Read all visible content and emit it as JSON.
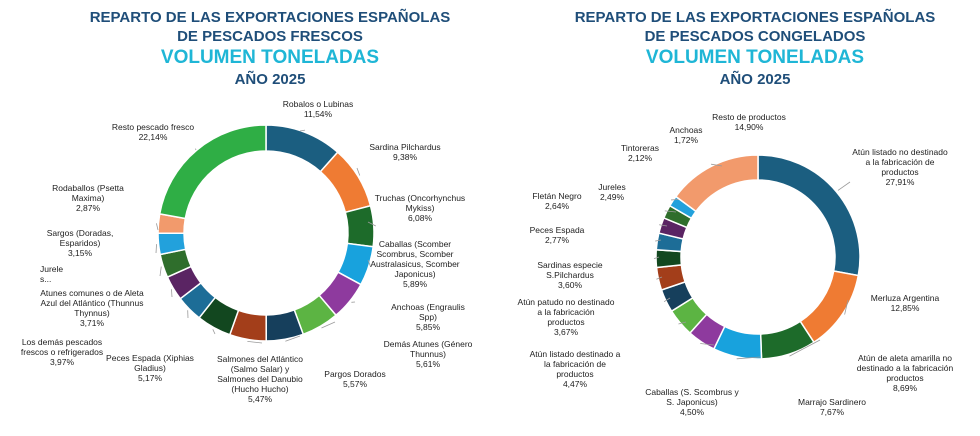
{
  "chart_data": [
    {
      "type": "pie",
      "title_lines": [
        "REPARTO DE LAS EXPORTACIONES ESPAÑOLAS",
        "DE PESCADOS FRESCOS"
      ],
      "subtitle": "VOLUMEN TONELADAS",
      "year": "AÑO 2025",
      "slices": [
        {
          "name": [
            "Robalos o Lubinas"
          ],
          "value": "11,54%",
          "pct": 11.54,
          "color": "#1b5e80"
        },
        {
          "name": [
            "Sardina Pilchardus"
          ],
          "value": "9,38%",
          "pct": 9.38,
          "color": "#ef7b33"
        },
        {
          "name": [
            "Truchas (Oncorhynchus",
            "Mykiss)"
          ],
          "value": "6,08%",
          "pct": 6.08,
          "color": "#1d6b2a"
        },
        {
          "name": [
            "Caballas (Scomber",
            "Scombrus, Scomber",
            "Australasicus, Scomber",
            "Japonicus)"
          ],
          "value": "5,89%",
          "pct": 5.89,
          "color": "#18a2dd"
        },
        {
          "name": [
            "Anchoas (Engraulis",
            "Spp)"
          ],
          "value": "5,85%",
          "pct": 5.85,
          "color": "#8e3a9e"
        },
        {
          "name": [
            "Demás Atunes (Género",
            "Thunnus)"
          ],
          "value": "5,61%",
          "pct": 5.61,
          "color": "#5cb443"
        },
        {
          "name": [
            "Pargos Dorados"
          ],
          "value": "5,57%",
          "pct": 5.57,
          "color": "#163f5c"
        },
        {
          "name": [
            "Salmones del Atlántico",
            "(Salmo Salar) y",
            "Salmones del Danubio",
            "(Hucho Hucho)"
          ],
          "value": "5,47%",
          "pct": 5.47,
          "color": "#a33e1a"
        },
        {
          "name": [
            "Peces Espada (Xiphias",
            "Gladius)"
          ],
          "value": "5,17%",
          "pct": 5.17,
          "color": "#12471f"
        },
        {
          "name": [
            "Los demás pescados",
            "frescos o refrigerados"
          ],
          "value": "3,97%",
          "pct": 3.97,
          "color": "#1d6d97"
        },
        {
          "name": [
            "Atunes comunes o de Aleta",
            "Azul del Atlántico (Thunnus",
            "Thynnus)"
          ],
          "value": "3,71%",
          "pct": 3.71,
          "color": "#5a2463"
        },
        {
          "name": [
            "Jurele",
            "s..."
          ],
          "value": "",
          "pct": 3.5,
          "color": "#2f6e2c"
        },
        {
          "name": [
            "Sargos (Doradas,",
            "Esparidos)"
          ],
          "value": "3,15%",
          "pct": 3.15,
          "color": "#22a1dc"
        },
        {
          "name": [
            "Rodaballos (Psetta",
            "Maxima)"
          ],
          "value": "2,87%",
          "pct": 2.87,
          "color": "#f29a6c"
        },
        {
          "name": [
            "Resto pescado fresco"
          ],
          "value": "22,14%",
          "pct": 22.14,
          "color": "#2fae45"
        }
      ]
    },
    {
      "type": "pie",
      "title_lines": [
        "REPARTO DE LAS EXPORTACIONES ESPAÑOLAS",
        "DE PESCADOS CONGELADOS"
      ],
      "subtitle": "VOLUMEN TONELADAS",
      "year": "AÑO 2025",
      "slices": [
        {
          "name": [
            "Atún listado no destinado",
            "a la fabricación de",
            "productos"
          ],
          "value": "27,91%",
          "pct": 27.91,
          "color": "#1b5e80"
        },
        {
          "name": [
            "Merluza Argentina"
          ],
          "value": "12,85%",
          "pct": 12.85,
          "color": "#ef7b33"
        },
        {
          "name": [
            "Atún de aleta amarilla no",
            "destinado a la fabricación",
            "productos"
          ],
          "value": "8,69%",
          "pct": 8.69,
          "color": "#1d6b2a"
        },
        {
          "name": [
            "Marrajo Sardinero"
          ],
          "value": "7,67%",
          "pct": 7.67,
          "color": "#18a2dd"
        },
        {
          "name": [
            "Caballas (S. Scombrus y",
            "S. Japonicus)"
          ],
          "value": "4,50%",
          "pct": 4.5,
          "color": "#8e3a9e"
        },
        {
          "name": [
            "Atún listado destinado a",
            "la fabricación de",
            "productos"
          ],
          "value": "4,47%",
          "pct": 4.47,
          "color": "#5cb443"
        },
        {
          "name": [
            "Atún patudo no destinado",
            "a la fabricación",
            "productos"
          ],
          "value": "3,67%",
          "pct": 3.67,
          "color": "#163f5c"
        },
        {
          "name": [
            "Sardinas especie",
            "S.Pilchardus"
          ],
          "value": "3,60%",
          "pct": 3.6,
          "color": "#a33e1a"
        },
        {
          "name": [
            "Peces Espada"
          ],
          "value": "2,77%",
          "pct": 2.77,
          "color": "#12471f"
        },
        {
          "name": [
            "Fletán Negro"
          ],
          "value": "2,64%",
          "pct": 2.64,
          "color": "#1d6d97"
        },
        {
          "name": [
            "Jureles"
          ],
          "value": "2,49%",
          "pct": 2.49,
          "color": "#5a2463"
        },
        {
          "name": [
            "Tintoreras"
          ],
          "value": "2,12%",
          "pct": 2.12,
          "color": "#2f6e2c"
        },
        {
          "name": [
            "Anchoas"
          ],
          "value": "1,72%",
          "pct": 1.72,
          "color": "#22a1dc"
        },
        {
          "name": [
            "Resto de productos"
          ],
          "value": "14,90%",
          "pct": 14.9,
          "color": "#f29a6c"
        }
      ]
    }
  ]
}
